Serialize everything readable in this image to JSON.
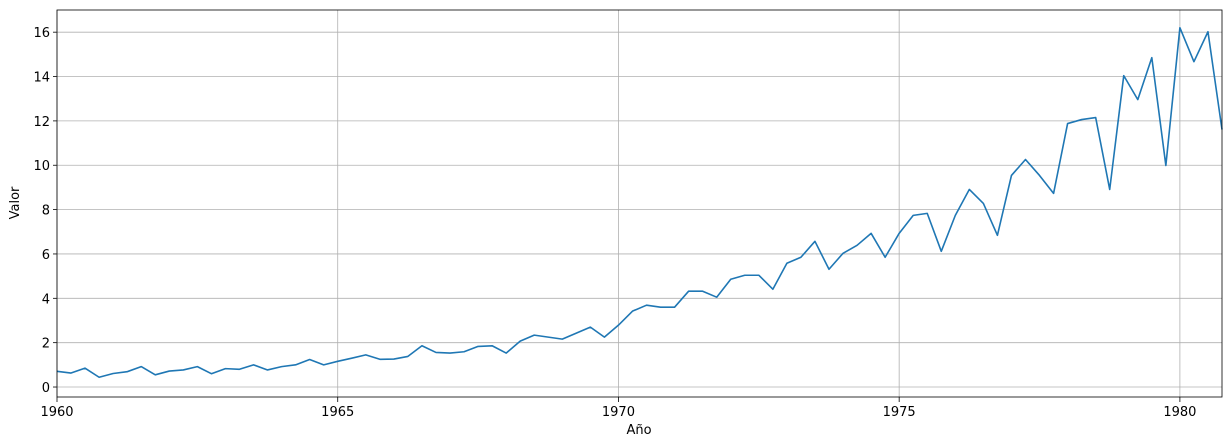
{
  "chart_data": {
    "type": "line",
    "xlabel": "Año",
    "ylabel": "Valor",
    "x": [
      1960,
      1960.25,
      1960.5,
      1960.75,
      1961,
      1961.25,
      1961.5,
      1961.75,
      1962,
      1962.25,
      1962.5,
      1962.75,
      1963,
      1963.25,
      1963.5,
      1963.75,
      1964,
      1964.25,
      1964.5,
      1964.75,
      1965,
      1965.25,
      1965.5,
      1965.75,
      1966,
      1966.25,
      1966.5,
      1966.75,
      1967,
      1967.25,
      1967.5,
      1967.75,
      1968,
      1968.25,
      1968.5,
      1968.75,
      1969,
      1969.25,
      1969.5,
      1969.75,
      1970,
      1970.25,
      1970.5,
      1970.75,
      1971,
      1971.25,
      1971.5,
      1971.75,
      1972,
      1972.25,
      1972.5,
      1972.75,
      1973,
      1973.25,
      1973.5,
      1973.75,
      1974,
      1974.25,
      1974.5,
      1974.75,
      1975,
      1975.25,
      1975.5,
      1975.75,
      1976,
      1976.25,
      1976.5,
      1976.75,
      1977,
      1977.25,
      1977.5,
      1977.75,
      1978,
      1978.25,
      1978.5,
      1978.75,
      1979,
      1979.25,
      1979.5,
      1979.75,
      1980,
      1980.25,
      1980.5,
      1980.75
    ],
    "series": [
      {
        "name": "Valor",
        "color": "#1f77b4",
        "values": [
          0.71,
          0.63,
          0.85,
          0.44,
          0.61,
          0.69,
          0.92,
          0.55,
          0.72,
          0.77,
          0.92,
          0.6,
          0.83,
          0.8,
          1.0,
          0.77,
          0.92,
          1.0,
          1.24,
          1.0,
          1.16,
          1.3,
          1.45,
          1.25,
          1.26,
          1.38,
          1.86,
          1.56,
          1.53,
          1.59,
          1.83,
          1.86,
          1.53,
          2.07,
          2.34,
          2.25,
          2.16,
          2.43,
          2.7,
          2.25,
          2.79,
          3.42,
          3.69,
          3.6,
          3.6,
          4.32,
          4.32,
          4.05,
          4.86,
          5.04,
          5.04,
          4.41,
          5.58,
          5.85,
          6.57,
          5.31,
          6.03,
          6.39,
          6.93,
          5.85,
          6.93,
          7.74,
          7.83,
          6.12,
          7.74,
          8.91,
          8.28,
          6.84,
          9.54,
          10.26,
          9.54,
          8.73,
          11.88,
          12.06,
          12.15,
          8.91,
          14.04,
          12.96,
          14.85,
          9.99,
          16.2,
          14.67,
          16.02,
          11.61
        ]
      }
    ],
    "xlim": [
      1960,
      1980.75
    ],
    "xticks": [
      1960,
      1965,
      1970,
      1975,
      1980
    ],
    "ylim": [
      -0.45,
      17.0
    ],
    "yticks": [
      0,
      2,
      4,
      6,
      8,
      10,
      12,
      14,
      16
    ],
    "grid": true
  }
}
